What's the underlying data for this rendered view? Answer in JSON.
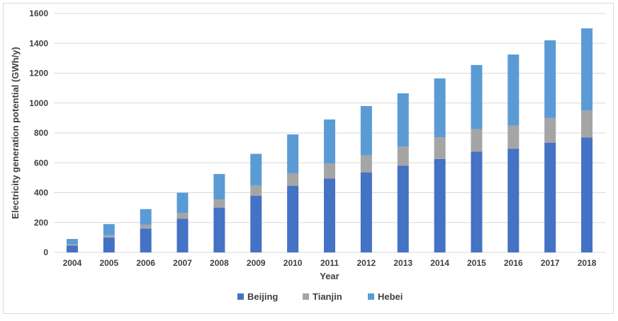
{
  "chart_data": {
    "type": "bar",
    "stacked": true,
    "title": "",
    "xlabel": "Year",
    "ylabel": "Electricity generation potential (GWh/y)",
    "ylim": [
      0,
      1600
    ],
    "yticks": [
      "0",
      "200",
      "400",
      "600",
      "800",
      "1000",
      "1200",
      "1400",
      "1600"
    ],
    "grid": true,
    "legend_position": "bottom",
    "categories": [
      "2004",
      "2005",
      "2006",
      "2007",
      "2008",
      "2009",
      "2010",
      "2011",
      "2012",
      "2013",
      "2014",
      "2015",
      "2016",
      "2017",
      "2018"
    ],
    "series": [
      {
        "name": "Beijing",
        "color": "#4472c4",
        "values": [
          45,
          100,
          160,
          225,
          300,
          380,
          445,
          495,
          535,
          580,
          625,
          675,
          695,
          735,
          770
        ]
      },
      {
        "name": "Tianjin",
        "color": "#a5a5a5",
        "values": [
          10,
          15,
          25,
          40,
          55,
          70,
          85,
          100,
          115,
          130,
          145,
          150,
          155,
          165,
          180
        ]
      },
      {
        "name": "Hebei",
        "color": "#5b9bd5",
        "values": [
          35,
          75,
          105,
          135,
          170,
          210,
          260,
          295,
          330,
          355,
          395,
          430,
          475,
          520,
          550
        ]
      }
    ]
  }
}
